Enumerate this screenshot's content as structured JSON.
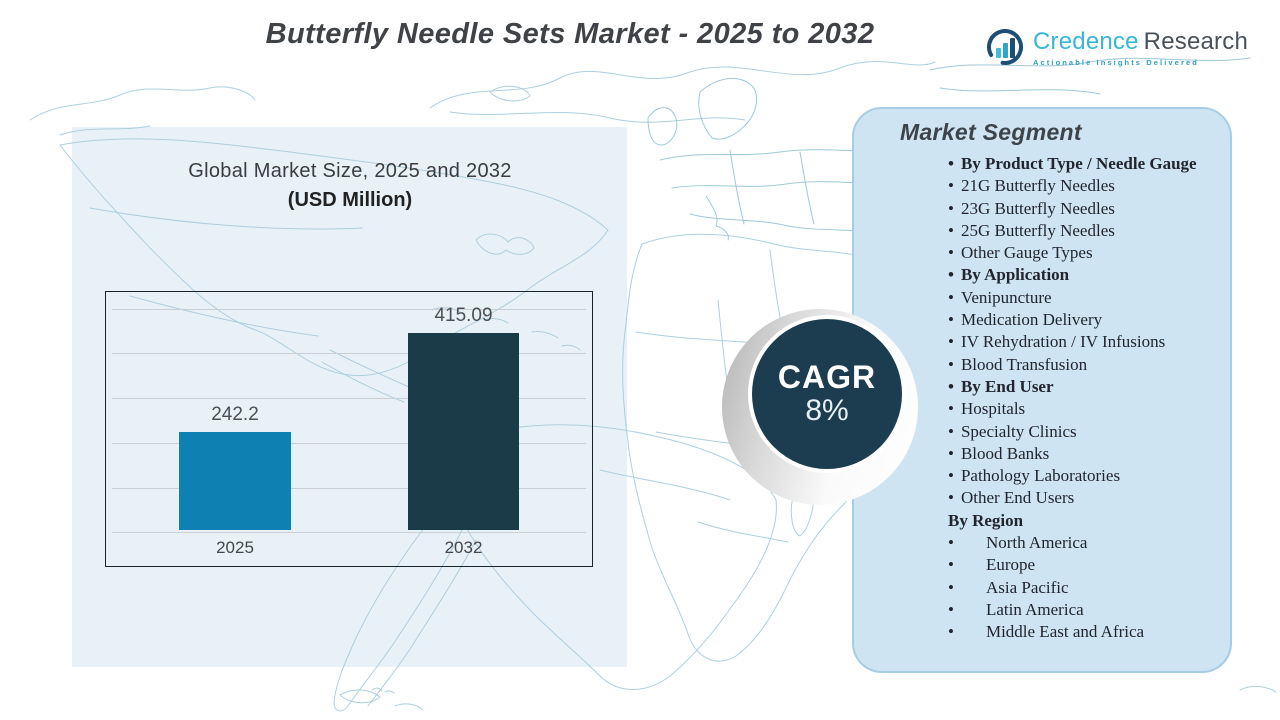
{
  "header": {
    "title": "Butterfly Needle Sets Market - 2025 to 2032",
    "logo": {
      "brand_primary": "Credence",
      "brand_secondary": "Research",
      "tagline": "Actionable Insights Delivered"
    }
  },
  "chart_data": {
    "type": "bar",
    "title": "Global Market Size, 2025 and 2032",
    "subtitle": "(USD Million)",
    "categories": [
      "2025",
      "2032"
    ],
    "values": [
      242.2,
      415.09
    ],
    "value_labels": [
      "242.2",
      "415.09"
    ],
    "xlabel": "",
    "ylabel": "",
    "ylim": [
      70,
      460
    ],
    "grid": true,
    "legend": false,
    "bar_colors": [
      "#0e81b2",
      "#1b3b49"
    ]
  },
  "cagr": {
    "label": "CAGR",
    "value": "8%"
  },
  "segment_panel": {
    "title": "Market Segment",
    "items": [
      {
        "bullet": "•",
        "text": "By Product Type / Needle Gauge",
        "classes": "bold"
      },
      {
        "bullet": "•",
        "text": "21G Butterfly Needles",
        "classes": ""
      },
      {
        "bullet": "•",
        "text": "23G Butterfly Needles",
        "classes": ""
      },
      {
        "bullet": "•",
        "text": "25G Butterfly Needles",
        "classes": ""
      },
      {
        "bullet": "•",
        "text": "Other Gauge Types",
        "classes": ""
      },
      {
        "bullet": "•",
        "text": "By Application",
        "classes": "bold"
      },
      {
        "bullet": "•",
        "text": "Venipuncture",
        "classes": ""
      },
      {
        "bullet": "•",
        "text": "Medication Delivery",
        "classes": ""
      },
      {
        "bullet": "•",
        "text": "IV Rehydration / IV Infusions",
        "classes": ""
      },
      {
        "bullet": "•",
        "text": "Blood Transfusion",
        "classes": ""
      },
      {
        "bullet": "•",
        "text": "By End User",
        "classes": "bold"
      },
      {
        "bullet": "•",
        "text": "Hospitals",
        "classes": ""
      },
      {
        "bullet": "•",
        "text": "Specialty Clinics",
        "classes": ""
      },
      {
        "bullet": "•",
        "text": "Blood Banks",
        "classes": ""
      },
      {
        "bullet": "•",
        "text": "Pathology Laboratories",
        "classes": ""
      },
      {
        "bullet": "•",
        "text": "Other End Users",
        "classes": ""
      },
      {
        "bullet": "",
        "text": "By Region",
        "classes": "bold"
      },
      {
        "bullet": "•",
        "text": "North America",
        "classes": "wide"
      },
      {
        "bullet": "•",
        "text": "Europe",
        "classes": "wide"
      },
      {
        "bullet": "•",
        "text": "Asia Pacific",
        "classes": "wide"
      },
      {
        "bullet": "•",
        "text": "Latin America",
        "classes": "wide"
      },
      {
        "bullet": "•",
        "text": "Middle East and Africa",
        "classes": "wide"
      }
    ]
  },
  "colors": {
    "bar_2025": "#0e81b2",
    "bar_2032": "#1b3b49",
    "cagr_circle": "#1c3d4f",
    "segment_panel_bg": "#cfe4f2",
    "chart_panel_bg": "#e9f1f8",
    "map_stroke": "#a6cadb",
    "brand_cyan": "#38b6d6",
    "brand_slate": "#49525a"
  }
}
